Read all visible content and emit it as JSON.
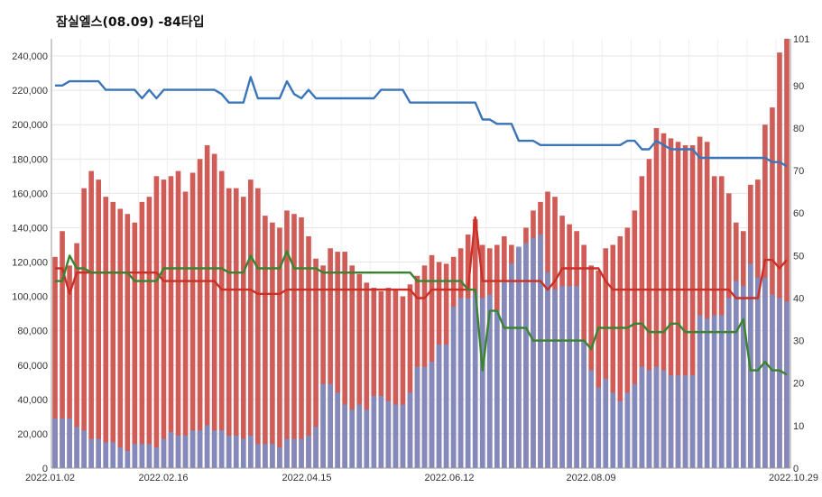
{
  "chart_data": {
    "type": "bar",
    "title": "잠실엘스(08.09) -84타입",
    "grid": true,
    "x": {
      "tick_labels": [
        "2022.01.02",
        "2022.02.16",
        "2022.04.15",
        "2022.06.12",
        "2022.08.09",
        "2022.10.29"
      ]
    },
    "y_left": {
      "range": [
        0,
        250000
      ],
      "ticks": [
        0,
        20000,
        40000,
        60000,
        80000,
        100000,
        120000,
        140000,
        160000,
        180000,
        200000,
        220000,
        240000
      ],
      "tick_labels": [
        "0",
        "20,000",
        "40,000",
        "60,000",
        "80,000",
        "100,000",
        "120,000",
        "140,000",
        "160,000",
        "180,000",
        "200,000",
        "220,000",
        "240,000"
      ]
    },
    "y_right": {
      "range": [
        0,
        101
      ],
      "ticks": [
        0,
        10,
        20,
        30,
        40,
        50,
        60,
        70,
        80,
        90,
        101
      ],
      "tick_labels": [
        "0",
        "10",
        "20",
        "30",
        "40",
        "50",
        "60",
        "70",
        "80",
        "90",
        "101"
      ]
    },
    "series": [
      {
        "type": "bar",
        "axis": "left",
        "color": "#cf5c57",
        "values": [
          123000,
          138000,
          118000,
          131000,
          163000,
          173000,
          168000,
          158000,
          155000,
          151000,
          148000,
          143000,
          155000,
          158000,
          170000,
          168000,
          170000,
          173000,
          161000,
          172000,
          180000,
          188000,
          183000,
          173000,
          163000,
          163000,
          158000,
          168000,
          163000,
          147000,
          143000,
          140000,
          150000,
          148000,
          146000,
          135000,
          122000,
          118000,
          128000,
          126000,
          126000,
          118000,
          113000,
          108000,
          105000,
          103000,
          105000,
          104000,
          100000,
          107000,
          112000,
          118000,
          124000,
          120000,
          119000,
          123000,
          128000,
          136000,
          145000,
          130000,
          128000,
          130000,
          135000,
          130000,
          128000,
          140000,
          150000,
          155000,
          161000,
          158000,
          147000,
          142000,
          138000,
          130000,
          118000,
          115000,
          128000,
          130000,
          135000,
          140000,
          150000,
          170000,
          180000,
          198000,
          195000,
          192000,
          190000,
          188000,
          188000,
          193000,
          190000,
          170000,
          170000,
          160000,
          143000,
          138000,
          165000,
          168000,
          200000,
          210000,
          242000,
          250000
        ]
      },
      {
        "type": "bar",
        "axis": "left",
        "color": "#7d8dc2",
        "values": [
          29000,
          29000,
          29000,
          24000,
          22000,
          17000,
          17000,
          15000,
          15000,
          12000,
          10000,
          14000,
          14000,
          14000,
          12000,
          17000,
          21000,
          19000,
          19000,
          22000,
          22000,
          25000,
          22000,
          22000,
          19000,
          19000,
          17000,
          19000,
          14000,
          14000,
          14000,
          12000,
          17000,
          17000,
          17000,
          19000,
          24000,
          49000,
          49000,
          44000,
          37000,
          34000,
          37000,
          34000,
          42000,
          42000,
          39000,
          37000,
          37000,
          44000,
          59000,
          59000,
          62000,
          72000,
          72000,
          94000,
          99000,
          99000,
          102000,
          99000,
          101000,
          92000,
          109000,
          119000,
          129000,
          131000,
          134000,
          136000,
          114000,
          104000,
          106000,
          106000,
          106000,
          74000,
          57000,
          47000,
          52000,
          44000,
          39000,
          44000,
          49000,
          59000,
          57000,
          59000,
          57000,
          54000,
          54000,
          54000,
          54000,
          89000,
          87000,
          89000,
          89000,
          99000,
          109000,
          106000,
          119000,
          111000,
          111000,
          101000,
          99000,
          97000
        ]
      },
      {
        "type": "line",
        "axis": "right",
        "color": "#3b75b8",
        "values": [
          90,
          90,
          91,
          91,
          91,
          91,
          91,
          89,
          89,
          89,
          89,
          89,
          87,
          89,
          87,
          89,
          89,
          89,
          89,
          89,
          89,
          89,
          89,
          88,
          86,
          86,
          86,
          92,
          87,
          87,
          87,
          87,
          91,
          88,
          87,
          89,
          87,
          87,
          87,
          87,
          87,
          87,
          87,
          87,
          87,
          89,
          89,
          89,
          89,
          86,
          86,
          86,
          86,
          86,
          86,
          86,
          86,
          86,
          86,
          82,
          82,
          81,
          81,
          81,
          77,
          77,
          77,
          76,
          76,
          76,
          76,
          76,
          76,
          76,
          76,
          76,
          76,
          76,
          76,
          77,
          77,
          75,
          75,
          77,
          76,
          75,
          75,
          75,
          75,
          73,
          73,
          73,
          73,
          73,
          73,
          73,
          73,
          73,
          73,
          72,
          72,
          71
        ]
      },
      {
        "type": "line",
        "axis": "right",
        "color": "#cb2f26",
        "values": [
          47,
          47,
          41,
          46,
          46,
          46,
          46,
          46,
          46,
          46,
          46,
          46,
          46,
          46,
          46,
          44,
          44,
          44,
          44,
          44,
          44,
          44,
          44,
          42,
          42,
          42,
          42,
          42,
          41,
          41,
          41,
          41,
          42,
          42,
          42,
          42,
          42,
          42,
          42,
          42,
          42,
          42,
          42,
          42,
          42,
          42,
          42,
          42,
          42,
          42,
          40,
          40,
          42,
          42,
          42,
          42,
          42,
          42,
          59,
          44,
          44,
          44,
          44,
          44,
          44,
          44,
          44,
          44,
          42,
          44,
          47,
          47,
          47,
          47,
          47,
          47,
          44,
          42,
          42,
          42,
          42,
          42,
          42,
          42,
          42,
          42,
          42,
          42,
          42,
          42,
          42,
          42,
          42,
          42,
          40,
          40,
          40,
          40,
          49,
          49,
          47,
          49
        ]
      },
      {
        "type": "line",
        "axis": "right",
        "color": "#3a8330",
        "values": [
          44,
          44,
          50,
          47,
          47,
          46,
          46,
          46,
          46,
          46,
          46,
          44,
          44,
          44,
          44,
          47,
          47,
          47,
          47,
          47,
          47,
          47,
          47,
          47,
          46,
          46,
          46,
          50,
          47,
          47,
          47,
          47,
          51,
          47,
          47,
          47,
          47,
          46,
          46,
          46,
          46,
          46,
          46,
          46,
          46,
          46,
          46,
          46,
          46,
          46,
          44,
          44,
          44,
          44,
          44,
          44,
          44,
          42,
          42,
          23,
          37,
          37,
          33,
          33,
          33,
          33,
          30,
          30,
          30,
          30,
          30,
          30,
          30,
          30,
          28,
          33,
          33,
          33,
          33,
          33,
          34,
          34,
          32,
          32,
          32,
          34,
          34,
          32,
          32,
          32,
          32,
          32,
          32,
          32,
          32,
          35,
          23,
          23,
          25,
          23,
          23,
          22
        ]
      }
    ]
  }
}
